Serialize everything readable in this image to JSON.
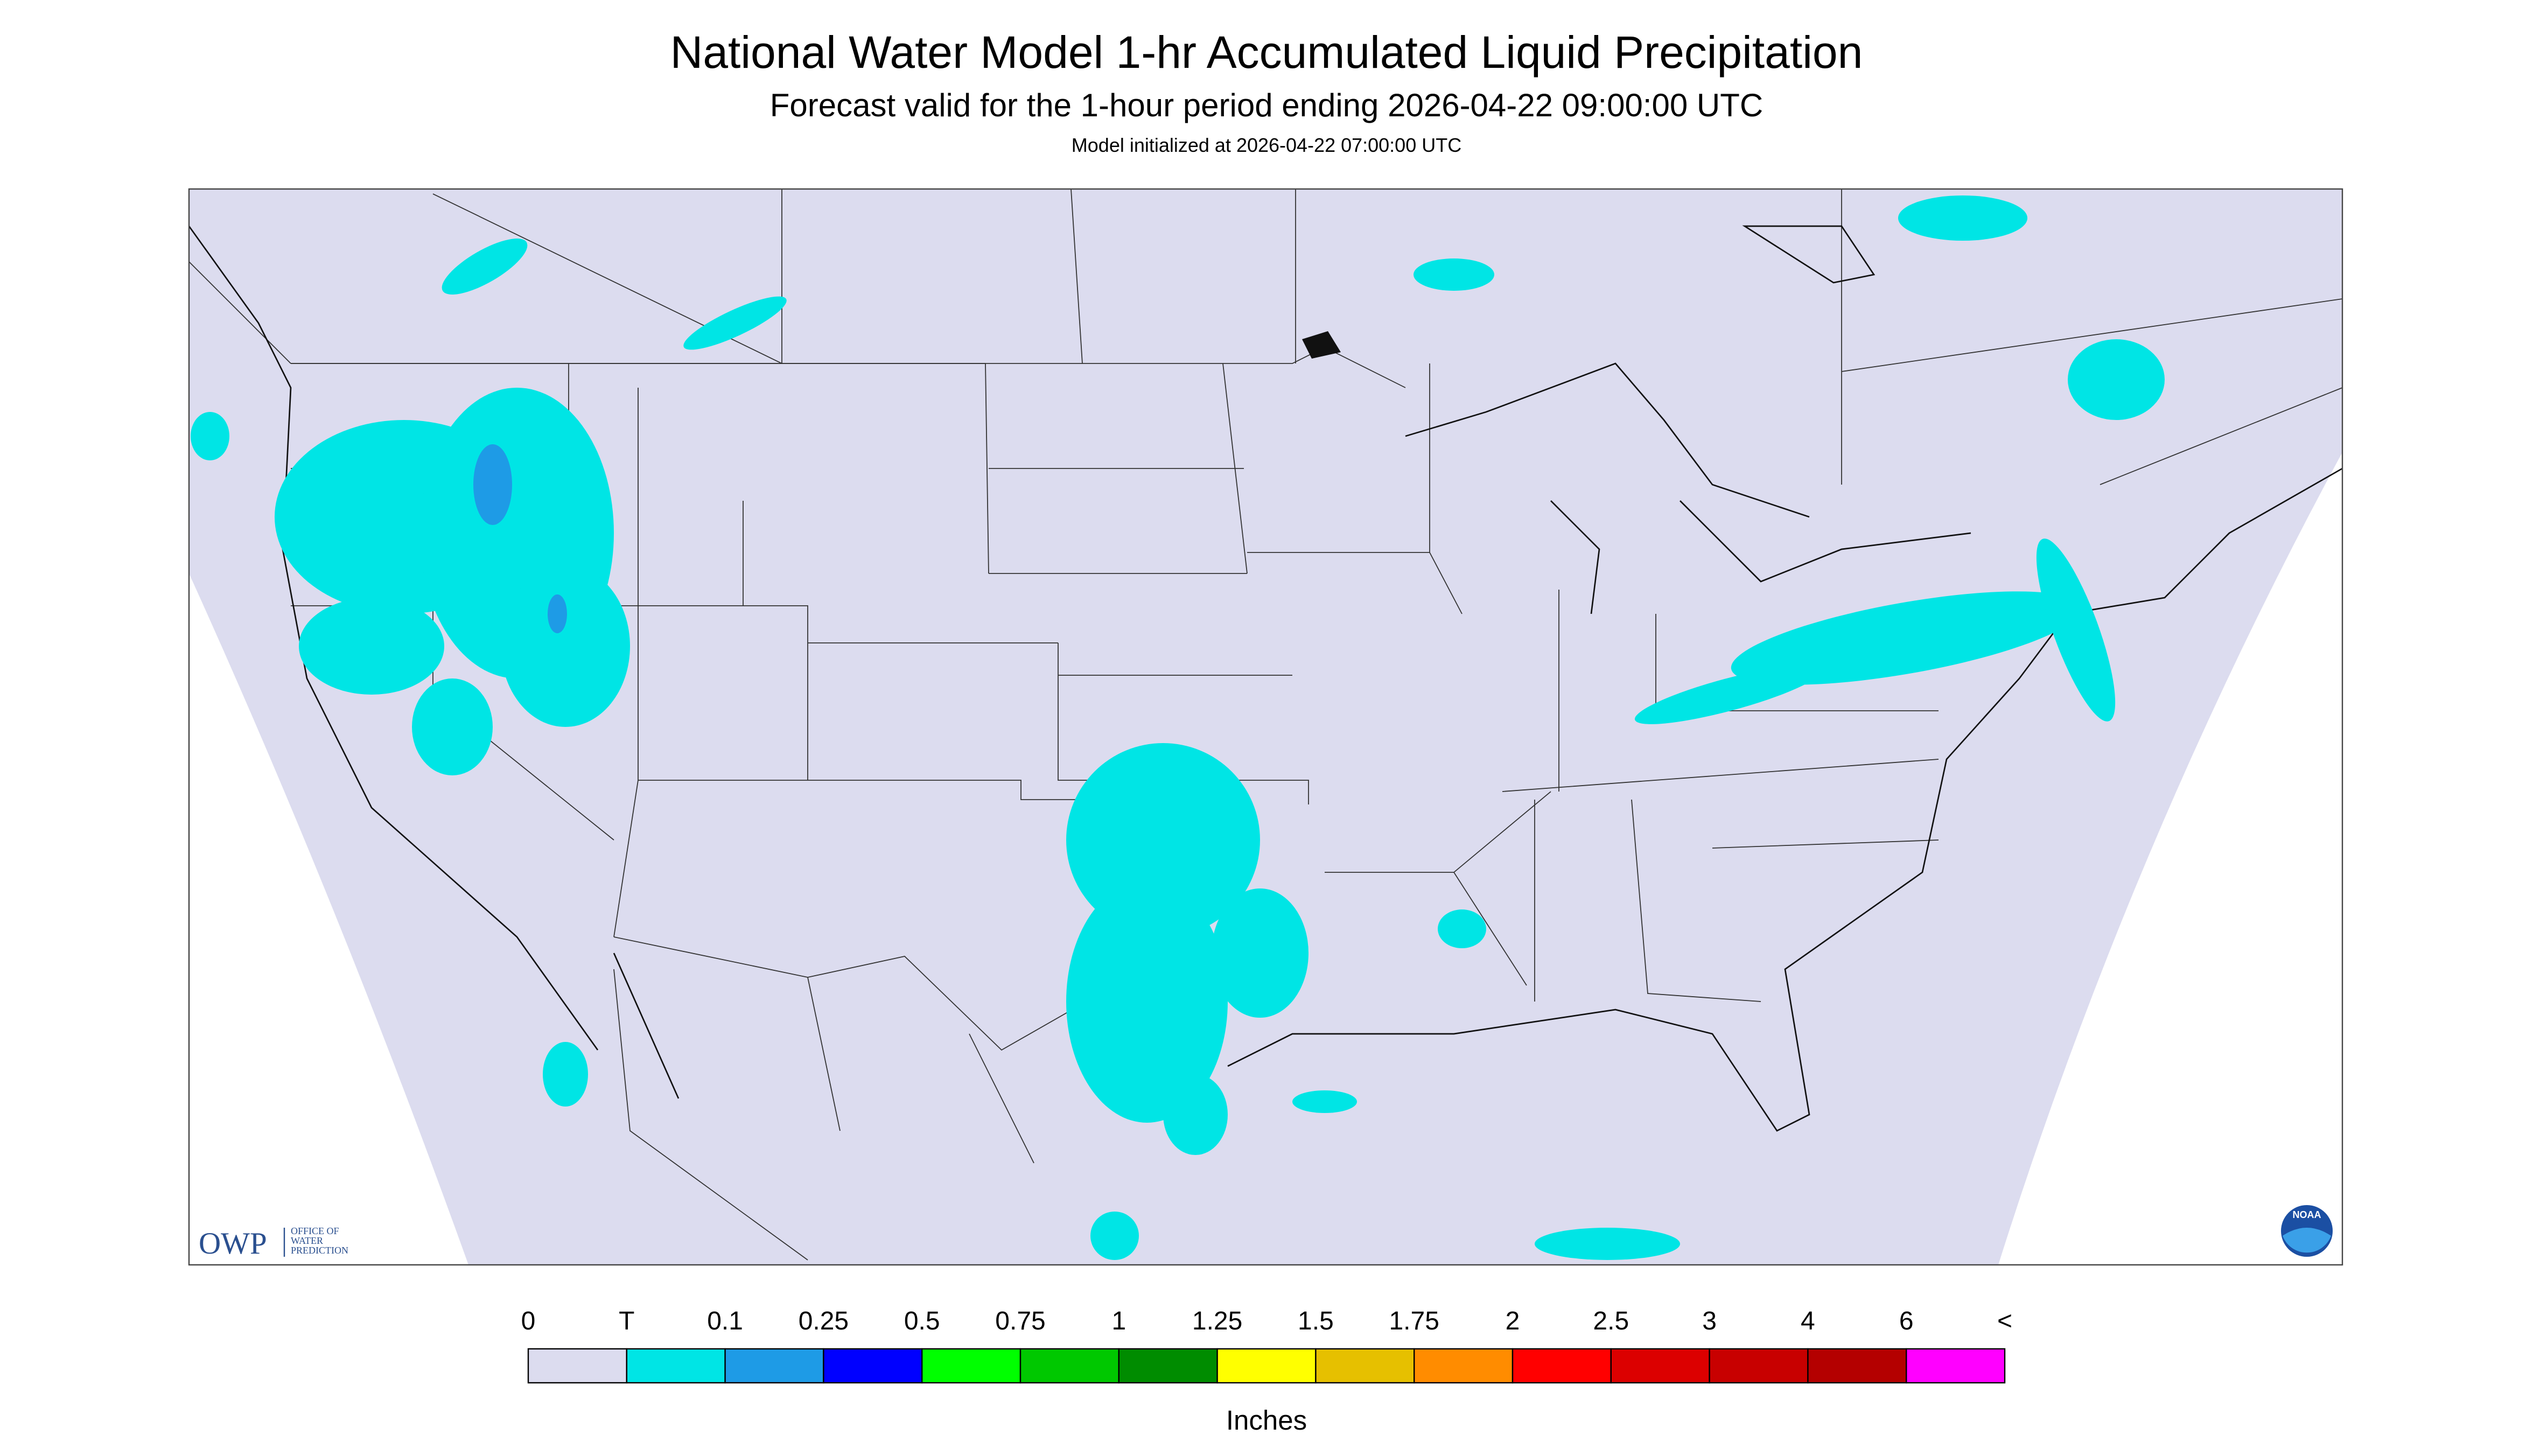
{
  "header": {
    "title": "National Water Model 1-hr Accumulated Liquid Precipitation",
    "subtitle": "Forecast valid for the 1-hour period ending 2026-04-22 09:00:00 UTC",
    "note": "Model initialized at 2026-04-22 07:00:00 UTC"
  },
  "map": {
    "logo": {
      "abbr": "OWP",
      "name": [
        "OFFICE OF",
        "WATER",
        "PREDICTION"
      ]
    },
    "agency": "NOAA"
  },
  "legend": {
    "labels": [
      "0",
      "T",
      "0.1",
      "0.25",
      "0.5",
      "0.75",
      "1",
      "1.25",
      "1.5",
      "1.75",
      "2",
      "2.5",
      "3",
      "4",
      "6",
      "<"
    ],
    "colors": [
      "#dcdcef",
      "#00e5e5",
      "#1e9be6",
      "#0000ff",
      "#00ff00",
      "#00c800",
      "#008c00",
      "#ffff00",
      "#e6c000",
      "#ff8c00",
      "#ff0000",
      "#dc0000",
      "#c80000",
      "#b40000",
      "#ff00ff",
      "#9b50c8"
    ],
    "unit": "Inches"
  }
}
